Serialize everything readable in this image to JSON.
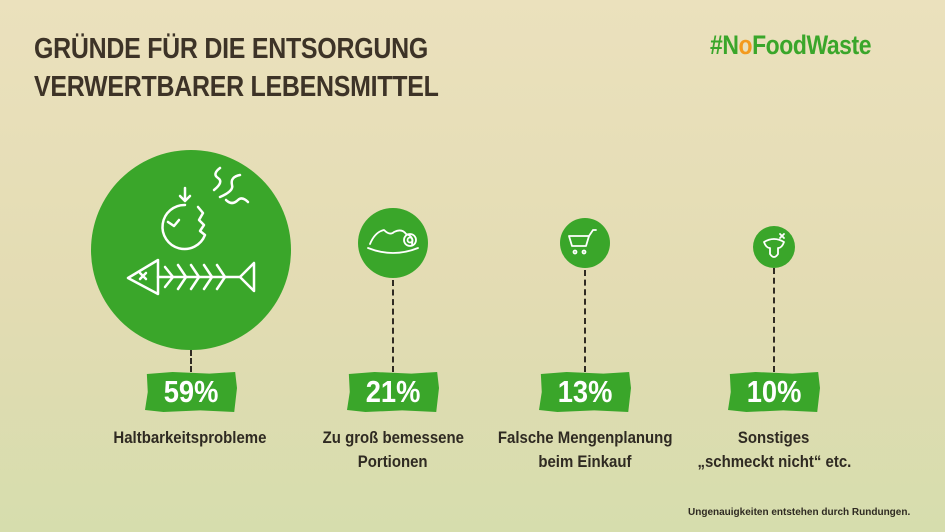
{
  "header": {
    "title_line1": "GRÜNDE FÜR DIE ENTSORGUNG",
    "title_line2": "VERWERTBARER LEBENSMITTEL"
  },
  "logo": {
    "prefix": "#N",
    "o": "o",
    "suffix": "FoodWaste"
  },
  "colors": {
    "accent": "#3aa62a",
    "text": "#3a3124",
    "logo_orange": "#f39a1e"
  },
  "chart_data": {
    "type": "bubble",
    "title": "GRÜNDE FÜR DIE ENTSORGUNG VERWERTBARER LEBENSMITTEL",
    "unit": "%",
    "categories": [
      "Haltbarkeitsprobleme",
      "Zu groß bemessene Portionen",
      "Falsche Mengenplanung beim Einkauf",
      "Sonstiges „schmeckt nicht“ etc."
    ],
    "values": [
      59,
      21,
      13,
      10
    ],
    "items": [
      {
        "value_label": "59%",
        "label_line1": "Haltbarkeitsprobleme",
        "label_line2": "",
        "icon": "rotten-apple-fishbone-icon"
      },
      {
        "value_label": "21%",
        "label_line1": "Zu groß bemessene",
        "label_line2": "Portionen",
        "icon": "food-plate-icon"
      },
      {
        "value_label": "13%",
        "label_line1": "Falsche Mengenplanung",
        "label_line2": "beim Einkauf",
        "icon": "shopping-cart-icon"
      },
      {
        "value_label": "10%",
        "label_line1": "Sonstiges",
        "label_line2": "„schmeckt nicht“ etc.",
        "icon": "tongue-icon"
      }
    ]
  },
  "footnote": "Ungenauigkeiten entstehen durch Rundungen."
}
